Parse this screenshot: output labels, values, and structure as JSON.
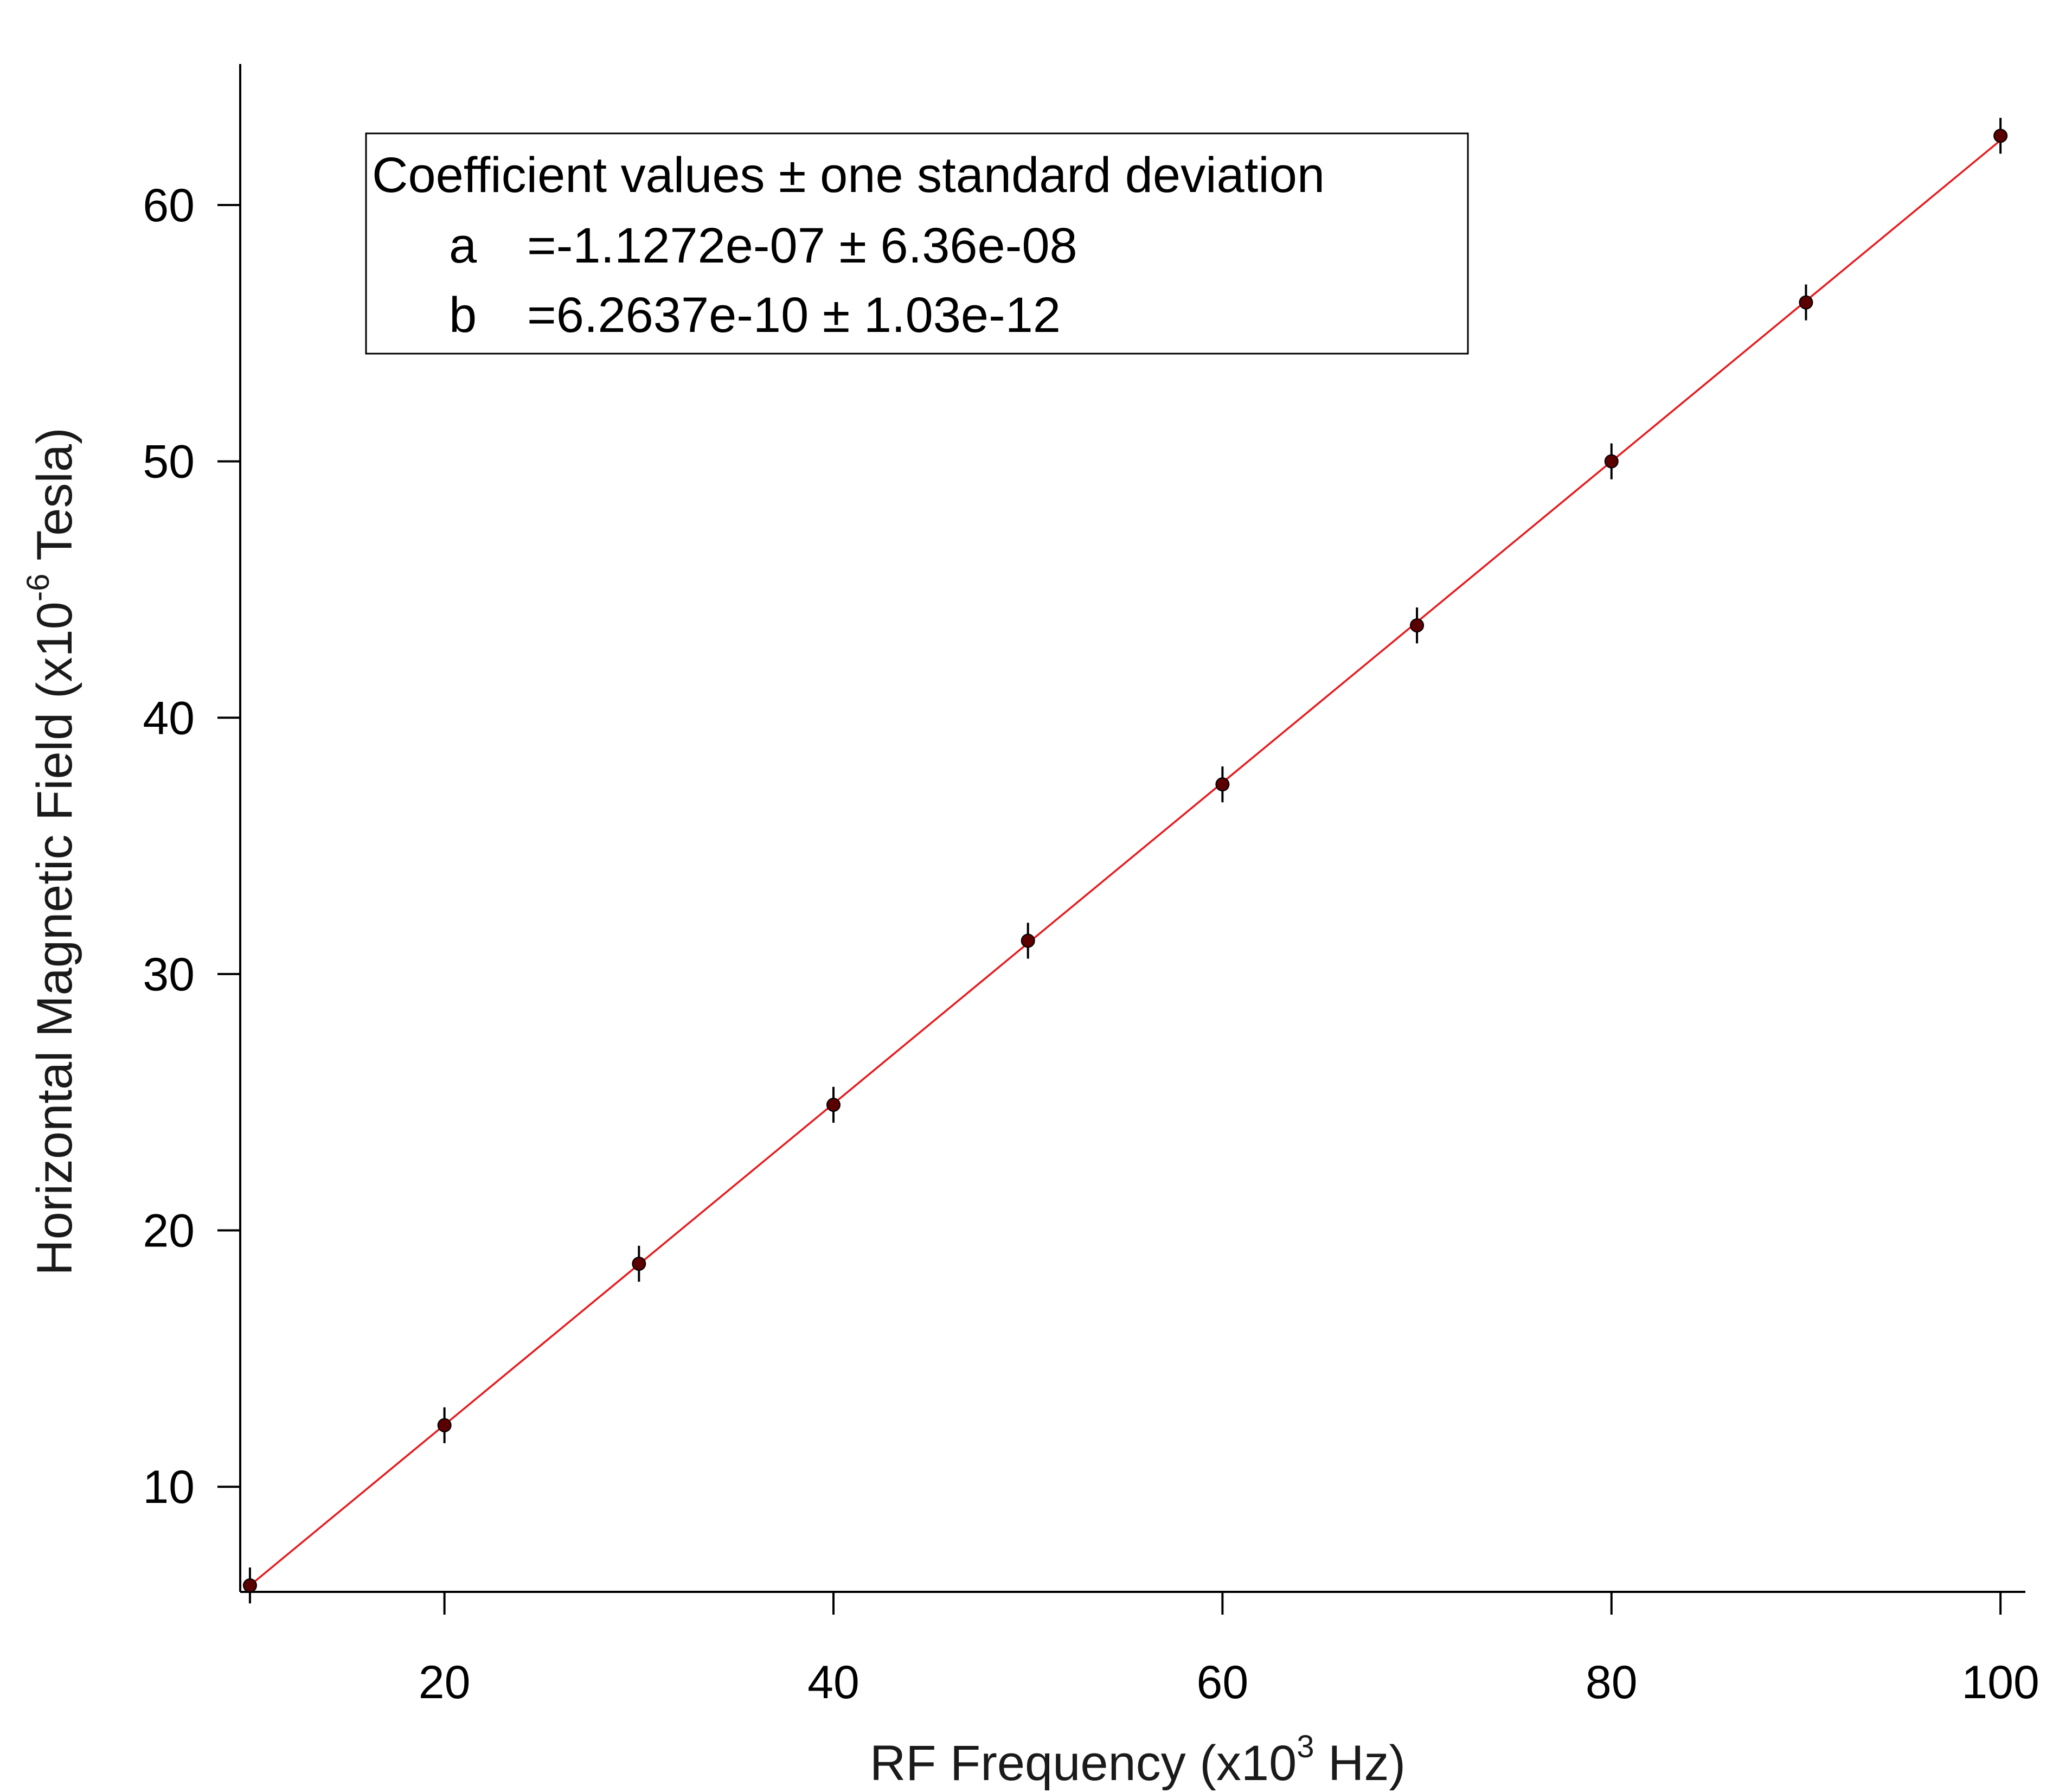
{
  "chart_data": {
    "type": "scatter",
    "xlabel": "RF Frequency (x10",
    "xlabel_exp": "3",
    "xlabel_tail": " Hz)",
    "ylabel": "Horizontal Magnetic Field (x10",
    "ylabel_exp": "-6",
    "ylabel_tail": " Tesla)",
    "xlim": [
      9.5,
      101
    ],
    "ylim": [
      5.9,
      65.5
    ],
    "xticks": [
      20,
      40,
      60,
      80,
      100
    ],
    "yticks": [
      10,
      20,
      30,
      40,
      50,
      60
    ],
    "grid": false,
    "series": [
      {
        "x": [
          10,
          20,
          30,
          40,
          50,
          60,
          70,
          80,
          90,
          100
        ],
        "y": [
          6.15,
          12.4,
          18.7,
          24.9,
          31.3,
          37.4,
          43.6,
          50.0,
          56.2,
          62.7
        ],
        "error": 0.7,
        "marker_color": "#5a0000",
        "errorbar_color": "#000000"
      }
    ],
    "fit": {
      "a": -0.11272,
      "b": 0.62637,
      "color": "#e8191c",
      "x_range": [
        10,
        100
      ]
    },
    "annotations": {
      "title": "Coefficient values ± one standard deviation",
      "rows": [
        {
          "name": "a",
          "value": "=-1.1272e-07 ± 6.36e-08"
        },
        {
          "name": "b",
          "value": "=6.2637e-10 ± 1.03e-12"
        }
      ]
    }
  }
}
